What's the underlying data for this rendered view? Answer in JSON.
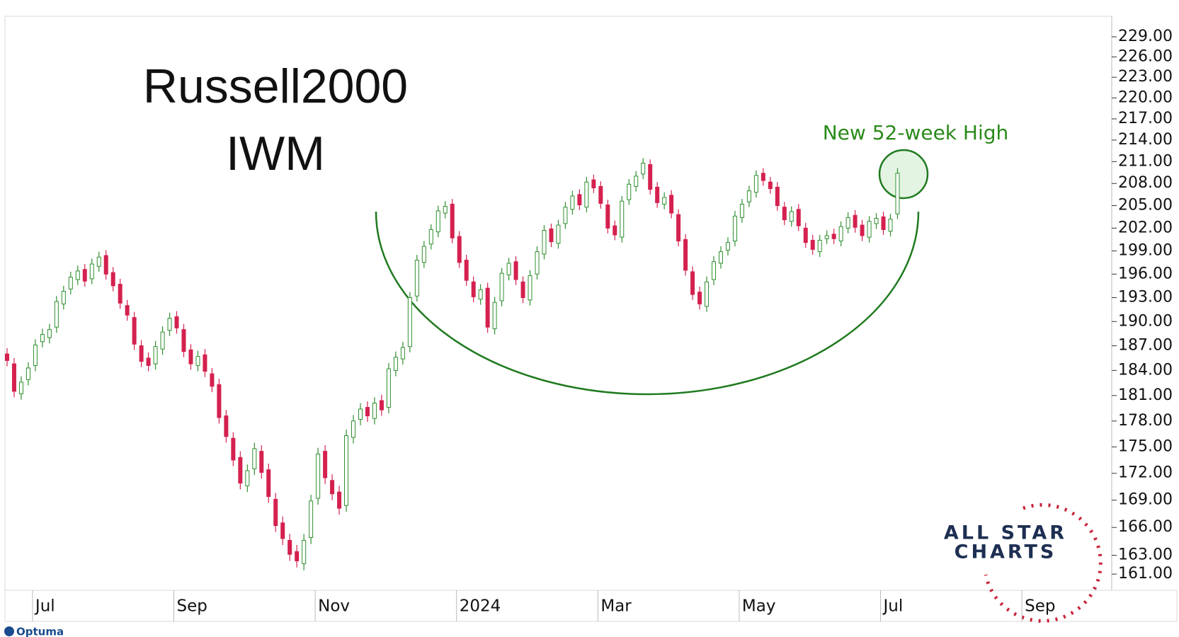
{
  "chart_data": {
    "type": "candlestick",
    "title": "Russell2000",
    "subtitle": "IWM",
    "annotation": "New 52-week High",
    "log_scale": true,
    "colors": {
      "up": "#2f8f2f",
      "down": "#d4214f"
    },
    "ylim": [
      159.3,
      232.1
    ],
    "yticks": [
      {
        "value": 161,
        "label": "161.00"
      },
      {
        "value": 163,
        "label": "163.00"
      },
      {
        "value": 166,
        "label": "166.00"
      },
      {
        "value": 169,
        "label": "169.00"
      },
      {
        "value": 172,
        "label": "172.00"
      },
      {
        "value": 175,
        "label": "175.00"
      },
      {
        "value": 178,
        "label": "178.00"
      },
      {
        "value": 181,
        "label": "181.00"
      },
      {
        "value": 184,
        "label": "184.00"
      },
      {
        "value": 187,
        "label": "187.00"
      },
      {
        "value": 190,
        "label": "190.00"
      },
      {
        "value": 193,
        "label": "193.00"
      },
      {
        "value": 196,
        "label": "196.00"
      },
      {
        "value": 199,
        "label": "199.00"
      },
      {
        "value": 202,
        "label": "202.00"
      },
      {
        "value": 205,
        "label": "205.00"
      },
      {
        "value": 208,
        "label": "208.00"
      },
      {
        "value": 211,
        "label": "211.00"
      },
      {
        "value": 214,
        "label": "214.00"
      },
      {
        "value": 217,
        "label": "217.00"
      },
      {
        "value": 220,
        "label": "220.00"
      },
      {
        "value": 223,
        "label": "223.00"
      },
      {
        "value": 226,
        "label": "226.00"
      },
      {
        "value": 229,
        "label": "229.00"
      }
    ],
    "categories": [
      null,
      null,
      null,
      null,
      "Jul",
      null,
      null,
      null,
      null,
      null,
      null,
      null,
      null,
      null,
      null,
      null,
      null,
      null,
      null,
      null,
      null,
      null,
      null,
      null,
      "Sep",
      null,
      null,
      null,
      null,
      null,
      null,
      null,
      null,
      null,
      null,
      null,
      null,
      null,
      null,
      null,
      null,
      null,
      null,
      null,
      "Nov",
      null,
      null,
      null,
      null,
      null,
      null,
      null,
      null,
      null,
      null,
      null,
      null,
      null,
      null,
      null,
      null,
      null,
      null,
      null,
      "2024",
      null,
      null,
      null,
      null,
      null,
      null,
      null,
      null,
      null,
      null,
      null,
      null,
      null,
      null,
      null,
      null,
      null,
      null,
      null,
      "Mar",
      null,
      null,
      null,
      null,
      null,
      null,
      null,
      null,
      null,
      null,
      null,
      null,
      null,
      null,
      null,
      null,
      null,
      null,
      null,
      "May",
      null,
      null,
      null,
      null,
      null,
      null,
      null,
      null,
      null,
      null,
      null,
      null,
      null,
      null,
      null,
      null,
      null,
      null,
      null,
      "Jul",
      null,
      null,
      null,
      null,
      null,
      null,
      null,
      null,
      null,
      null,
      null,
      null,
      null,
      null,
      null,
      null,
      null,
      null,
      null,
      "Sep",
      null,
      null,
      null,
      null,
      null,
      null,
      null,
      null,
      null,
      null,
      null,
      null
    ],
    "open": [
      186.0,
      184.8,
      181.2,
      182.9,
      184.6,
      187.5,
      188.0,
      189.3,
      192.2,
      194.1,
      195.3,
      196.6,
      195.4,
      197.0,
      198.4,
      196.2,
      194.7,
      192.0,
      190.5,
      187.0,
      185.5,
      184.8,
      186.6,
      188.9,
      190.6,
      189.0,
      186.5,
      184.6,
      185.9,
      183.6,
      182.3,
      178.6,
      176.0,
      173.8,
      170.6,
      172.5,
      174.5,
      172.4,
      169.1,
      166.5,
      164.6,
      163.4,
      162.1,
      164.9,
      169.2,
      174.5,
      171.2,
      169.9,
      168.4,
      176.1,
      178.2,
      179.6,
      178.3,
      180.4,
      179.6,
      184.0,
      185.4,
      186.9,
      193.2,
      197.5,
      199.9,
      201.5,
      204.0,
      205.2,
      200.9,
      197.8,
      195.0,
      192.8,
      194.2,
      189.1,
      192.6,
      195.9,
      197.6,
      195.0,
      192.7,
      196.0,
      198.6,
      201.9,
      200.0,
      202.6,
      204.5,
      206.5,
      204.8,
      208.5,
      207.6,
      205.1,
      202.3,
      200.8,
      205.8,
      207.6,
      209.3,
      210.6,
      207.5,
      205.2,
      206.4,
      203.8,
      200.5,
      196.3,
      193.7,
      191.9,
      195.3,
      197.4,
      199.1,
      200.3,
      203.4,
      205.5,
      206.8,
      209.4,
      208.2,
      207.5,
      204.8,
      202.9,
      204.5,
      202.0,
      200.4,
      198.9,
      200.6,
      201.2,
      200.3,
      202.0,
      203.7,
      202.4,
      200.8,
      202.6,
      203.5,
      201.6,
      203.9,
      null,
      null,
      null,
      null,
      null,
      null,
      null,
      null,
      null,
      null,
      null,
      null,
      null,
      null,
      null,
      null,
      null,
      null,
      null,
      null,
      null,
      null,
      null,
      null,
      null,
      null,
      null,
      null,
      null,
      null
    ],
    "high": [
      186.7,
      185.5,
      183.3,
      185.0,
      187.8,
      189.1,
      189.7,
      193.2,
      194.5,
      196.3,
      197.1,
      197.3,
      198.0,
      198.9,
      199.1,
      196.9,
      195.4,
      192.7,
      191.2,
      187.7,
      186.2,
      187.6,
      189.4,
      191.1,
      191.3,
      189.7,
      187.2,
      186.4,
      186.6,
      184.3,
      183.0,
      179.3,
      176.7,
      174.5,
      173.0,
      175.5,
      175.2,
      173.1,
      169.8,
      167.2,
      165.3,
      164.1,
      165.3,
      169.6,
      174.9,
      175.2,
      171.9,
      170.6,
      177.0,
      178.7,
      180.1,
      180.3,
      180.8,
      181.1,
      184.9,
      186.3,
      187.5,
      193.7,
      198.5,
      200.3,
      202.5,
      205.0,
      205.6,
      205.9,
      201.6,
      198.5,
      195.7,
      194.7,
      194.9,
      193.1,
      196.8,
      198.1,
      198.3,
      195.7,
      196.5,
      199.6,
      202.4,
      202.6,
      203.1,
      205.5,
      207.0,
      207.2,
      208.9,
      209.2,
      208.3,
      205.8,
      203.0,
      206.3,
      208.6,
      209.7,
      211.5,
      211.3,
      208.2,
      206.8,
      207.1,
      204.5,
      201.2,
      197.0,
      194.4,
      195.7,
      198.3,
      199.6,
      200.8,
      204.3,
      205.9,
      207.7,
      209.8,
      210.1,
      208.9,
      208.2,
      205.5,
      204.9,
      205.2,
      202.7,
      201.1,
      201.1,
      201.7,
      201.9,
      202.9,
      204.1,
      204.4,
      203.1,
      203.6,
      204.0,
      204.2,
      203.9,
      210.1,
      null,
      null,
      null,
      null,
      null,
      null,
      null,
      null,
      null,
      null,
      null,
      null,
      null,
      null,
      null,
      null,
      null,
      null,
      null,
      null,
      null,
      null,
      null,
      null,
      null,
      null,
      null,
      null,
      null,
      null
    ],
    "low": [
      184.5,
      180.8,
      180.5,
      182.2,
      183.9,
      186.8,
      187.3,
      188.6,
      191.5,
      193.4,
      194.6,
      194.4,
      194.7,
      196.3,
      195.3,
      193.8,
      191.6,
      190.1,
      186.5,
      184.4,
      183.9,
      184.1,
      185.9,
      188.2,
      188.5,
      185.6,
      184.1,
      183.9,
      183.2,
      181.4,
      177.7,
      175.5,
      172.8,
      170.2,
      169.9,
      171.8,
      171.4,
      168.7,
      165.5,
      164.1,
      162.4,
      161.7,
      161.4,
      164.2,
      168.5,
      170.8,
      169.0,
      167.4,
      167.7,
      175.4,
      177.5,
      177.9,
      177.6,
      178.6,
      178.9,
      183.3,
      184.7,
      186.2,
      192.5,
      196.8,
      199.2,
      200.8,
      203.3,
      200.0,
      196.8,
      194.5,
      192.4,
      192.1,
      188.6,
      188.4,
      191.9,
      195.2,
      194.6,
      192.3,
      192.0,
      195.3,
      197.9,
      199.5,
      199.3,
      201.9,
      203.8,
      204.4,
      204.1,
      206.7,
      204.6,
      201.3,
      200.4,
      200.1,
      205.1,
      206.9,
      208.6,
      206.5,
      204.7,
      204.5,
      203.3,
      199.6,
      195.8,
      192.7,
      191.5,
      191.2,
      194.6,
      196.7,
      198.4,
      199.6,
      202.7,
      204.8,
      206.1,
      207.7,
      206.6,
      204.3,
      202.4,
      202.2,
      201.6,
      199.4,
      198.5,
      198.2,
      199.9,
      199.9,
      199.6,
      201.3,
      201.4,
      200.3,
      200.1,
      201.9,
      201.1,
      200.9,
      203.2,
      null,
      null,
      null,
      null,
      null,
      null,
      null,
      null,
      null,
      null,
      null,
      null,
      null,
      null,
      null,
      null,
      null,
      null,
      null,
      null,
      null,
      null,
      null,
      null,
      null,
      null,
      null,
      null,
      null,
      null
    ],
    "close": [
      185.2,
      181.5,
      182.6,
      184.3,
      187.1,
      188.4,
      189.0,
      192.5,
      193.8,
      195.6,
      196.4,
      195.1,
      197.3,
      198.2,
      196.0,
      194.5,
      192.3,
      190.8,
      187.2,
      185.1,
      184.6,
      186.9,
      188.7,
      190.4,
      189.2,
      186.3,
      184.8,
      185.7,
      183.9,
      182.1,
      178.4,
      176.2,
      173.5,
      170.9,
      172.3,
      174.8,
      172.1,
      169.4,
      166.2,
      164.8,
      163.1,
      162.4,
      164.6,
      168.9,
      174.2,
      171.5,
      169.7,
      168.1,
      176.3,
      178.0,
      179.4,
      178.6,
      180.1,
      179.3,
      184.2,
      185.6,
      186.8,
      193.0,
      197.8,
      199.6,
      201.8,
      204.3,
      204.9,
      200.7,
      197.5,
      195.2,
      193.1,
      194.0,
      189.3,
      192.4,
      196.1,
      197.4,
      195.3,
      193.0,
      195.8,
      198.9,
      201.7,
      200.2,
      202.4,
      204.8,
      206.3,
      205.1,
      208.2,
      207.4,
      205.3,
      202.0,
      201.1,
      205.6,
      207.9,
      209.0,
      210.8,
      207.2,
      205.4,
      206.1,
      204.0,
      200.3,
      196.5,
      193.4,
      192.2,
      195.0,
      197.6,
      198.9,
      200.1,
      203.6,
      205.2,
      207.0,
      209.1,
      208.4,
      207.3,
      205.0,
      203.1,
      204.2,
      202.3,
      200.1,
      199.2,
      200.4,
      201.0,
      200.6,
      202.2,
      203.4,
      202.1,
      201.0,
      202.9,
      203.3,
      201.8,
      203.2,
      209.4,
      null,
      null,
      null,
      null,
      null,
      null,
      null,
      null,
      null,
      null,
      null,
      null,
      null,
      null,
      null,
      null,
      null,
      null,
      null,
      null,
      null,
      null,
      null,
      null,
      null,
      null,
      null,
      null,
      null,
      null
    ]
  },
  "branding": {
    "logo_line1": "ALL STAR",
    "logo_line2": "CHARTS",
    "platform": "Optuma"
  }
}
